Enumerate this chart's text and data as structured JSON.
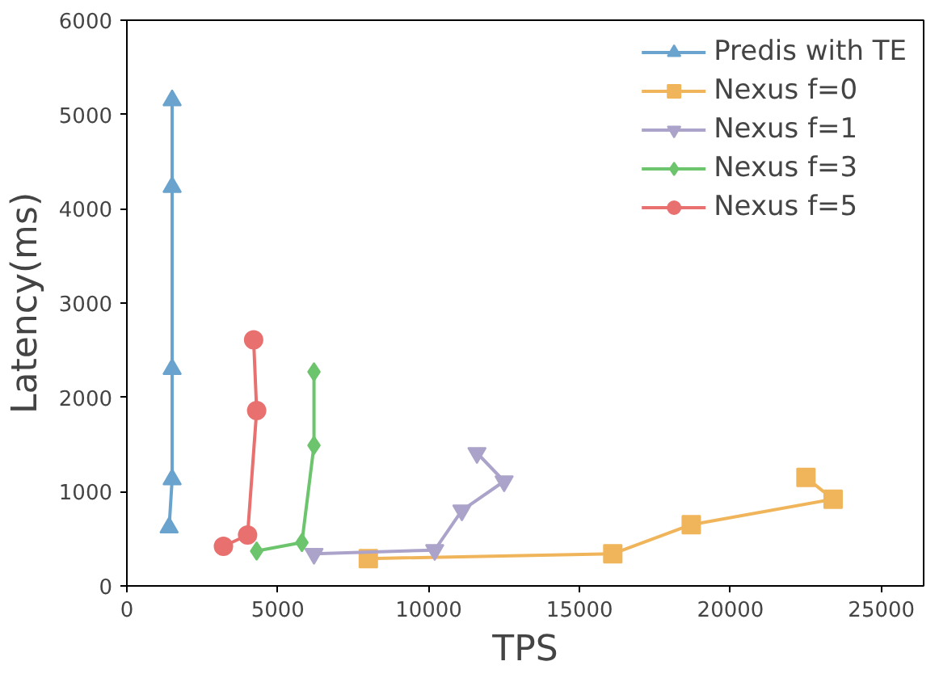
{
  "chart_data": {
    "type": "line",
    "xlabel": "TPS",
    "ylabel": "Latency(ms)",
    "xlim": [
      0,
      26400
    ],
    "ylim": [
      0,
      6000
    ],
    "xticks": [
      0,
      5000,
      10000,
      15000,
      20000,
      25000
    ],
    "yticks": [
      0,
      1000,
      2000,
      3000,
      4000,
      5000,
      6000
    ],
    "grid": false,
    "legend": "top right",
    "line_style": "solid",
    "series": [
      {
        "name": "Predis with TE",
        "color": "#6aa3cd",
        "marker": "triangle",
        "x": [
          1400,
          1500,
          1500,
          1500,
          1500
        ],
        "values": [
          620,
          1130,
          2300,
          4230,
          5150
        ]
      },
      {
        "name": "Nexus f=0",
        "color": "#f0b55a",
        "marker": "square",
        "x": [
          8000,
          16100,
          18700,
          23400,
          22500
        ],
        "values": [
          290,
          340,
          650,
          920,
          1150
        ]
      },
      {
        "name": "Nexus f=1",
        "color": "#aba3c9",
        "marker": "triangle",
        "x": [
          6200,
          10200,
          11100,
          12500,
          11600
        ],
        "values": [
          340,
          380,
          800,
          1110,
          1410
        ]
      },
      {
        "name": "Nexus f=3",
        "color": "#6cc46c",
        "marker": "diamond",
        "x": [
          4300,
          5800,
          6200,
          6200
        ],
        "values": [
          370,
          460,
          1490,
          2270
        ]
      },
      {
        "name": "Nexus f=5",
        "color": "#e8706f",
        "marker": "circle",
        "x": [
          3200,
          4000,
          4300,
          4200
        ],
        "values": [
          420,
          540,
          1860,
          2610
        ]
      }
    ]
  }
}
